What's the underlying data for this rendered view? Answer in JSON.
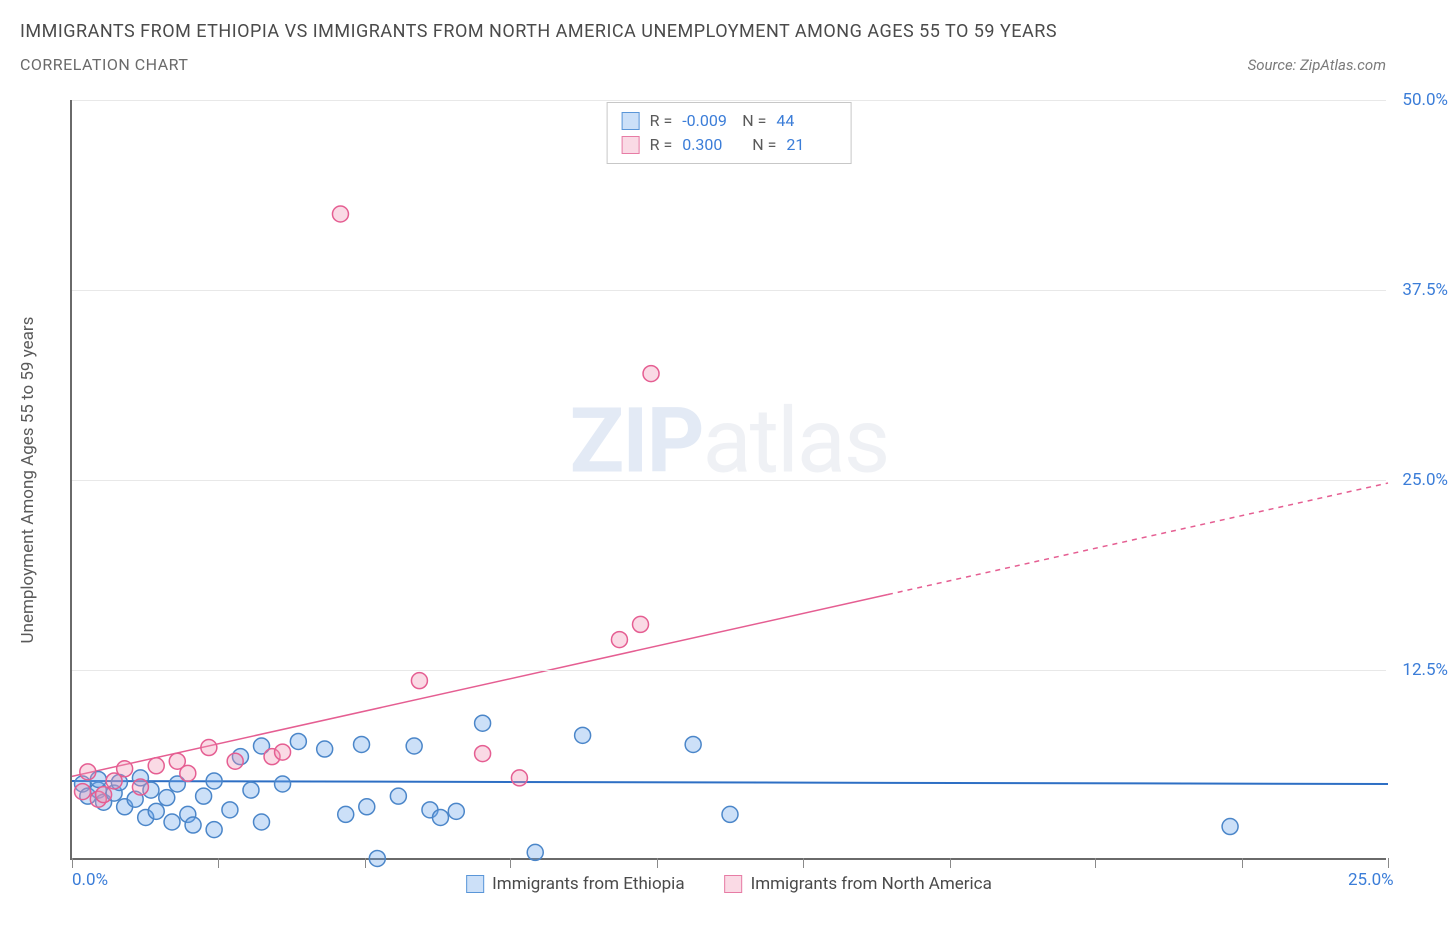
{
  "title": "IMMIGRANTS FROM ETHIOPIA VS IMMIGRANTS FROM NORTH AMERICA UNEMPLOYMENT AMONG AGES 55 TO 59 YEARS",
  "subtitle": "CORRELATION CHART",
  "source": "Source: ZipAtlas.com",
  "y_axis_label": "Unemployment Among Ages 55 to 59 years",
  "watermark_zip": "ZIP",
  "watermark_atlas": "atlas",
  "chart": {
    "type": "scatter",
    "xlim": [
      0,
      25
    ],
    "ylim": [
      0,
      50
    ],
    "x_ticks": [
      0,
      2.78,
      5.56,
      8.33,
      11.11,
      13.89,
      16.67,
      19.44,
      22.22,
      25
    ],
    "y_gridlines": [
      12.5,
      25,
      37.5,
      50
    ],
    "y_tick_labels": [
      {
        "v": 12.5,
        "label": "12.5%"
      },
      {
        "v": 25,
        "label": "25.0%"
      },
      {
        "v": 37.5,
        "label": "37.5%"
      },
      {
        "v": 50,
        "label": "50.0%"
      }
    ],
    "x_labels": [
      {
        "v": 0,
        "label": "0.0%"
      },
      {
        "v": 25,
        "label": "25.0%"
      }
    ],
    "marker_radius": 8,
    "marker_stroke_width": 1.5,
    "series": {
      "ethiopia": {
        "color_fill": "rgba(110,165,235,0.35)",
        "color_stroke": "#4b86c9",
        "label": "Immigrants from Ethiopia",
        "R": "-0.009",
        "N": "44",
        "trend": {
          "y1": 5.2,
          "y2": 5.0,
          "solid_to_x": 25,
          "color": "#2e6fc4",
          "width": 2
        },
        "points": [
          [
            0.2,
            5.0
          ],
          [
            0.3,
            4.2
          ],
          [
            0.5,
            4.6
          ],
          [
            0.5,
            5.3
          ],
          [
            0.6,
            3.8
          ],
          [
            0.8,
            4.4
          ],
          [
            0.9,
            5.1
          ],
          [
            1.0,
            3.5
          ],
          [
            1.2,
            4.0
          ],
          [
            1.3,
            5.4
          ],
          [
            1.4,
            2.8
          ],
          [
            1.5,
            4.6
          ],
          [
            1.6,
            3.2
          ],
          [
            1.8,
            4.1
          ],
          [
            1.9,
            2.5
          ],
          [
            2.0,
            5.0
          ],
          [
            2.2,
            3.0
          ],
          [
            2.3,
            2.3
          ],
          [
            2.5,
            4.2
          ],
          [
            2.7,
            5.2
          ],
          [
            2.7,
            2.0
          ],
          [
            3.0,
            3.3
          ],
          [
            3.2,
            6.8
          ],
          [
            3.4,
            4.6
          ],
          [
            3.6,
            7.5
          ],
          [
            3.6,
            2.5
          ],
          [
            4.0,
            5.0
          ],
          [
            4.3,
            7.8
          ],
          [
            4.8,
            7.3
          ],
          [
            5.2,
            3.0
          ],
          [
            5.5,
            7.6
          ],
          [
            5.8,
            0.1
          ],
          [
            5.6,
            3.5
          ],
          [
            6.5,
            7.5
          ],
          [
            6.8,
            3.3
          ],
          [
            7.0,
            2.8
          ],
          [
            7.3,
            3.2
          ],
          [
            7.8,
            9.0
          ],
          [
            8.8,
            0.5
          ],
          [
            9.7,
            8.2
          ],
          [
            11.8,
            7.6
          ],
          [
            12.5,
            3.0
          ],
          [
            22.0,
            2.2
          ],
          [
            6.2,
            4.2
          ]
        ]
      },
      "northamerica": {
        "color_fill": "rgba(240,150,180,0.35)",
        "color_stroke": "#e55e92",
        "label": "Immigrants from North America",
        "R": "0.300",
        "N": "21",
        "trend": {
          "y1": 5.5,
          "y2": 24.8,
          "solid_to_x": 15.5,
          "color": "#e55e92",
          "width": 1.5
        },
        "points": [
          [
            0.2,
            4.5
          ],
          [
            0.3,
            5.8
          ],
          [
            0.5,
            4.0
          ],
          [
            0.6,
            4.3
          ],
          [
            0.8,
            5.2
          ],
          [
            1.0,
            6.0
          ],
          [
            1.3,
            4.8
          ],
          [
            1.6,
            6.2
          ],
          [
            2.0,
            6.5
          ],
          [
            2.2,
            5.7
          ],
          [
            2.6,
            7.4
          ],
          [
            3.1,
            6.5
          ],
          [
            3.8,
            6.8
          ],
          [
            4.0,
            7.1
          ],
          [
            5.1,
            42.5
          ],
          [
            6.6,
            11.8
          ],
          [
            7.8,
            7.0
          ],
          [
            8.5,
            5.4
          ],
          [
            10.4,
            14.5
          ],
          [
            10.8,
            15.5
          ],
          [
            11.0,
            32.0
          ]
        ]
      }
    }
  }
}
